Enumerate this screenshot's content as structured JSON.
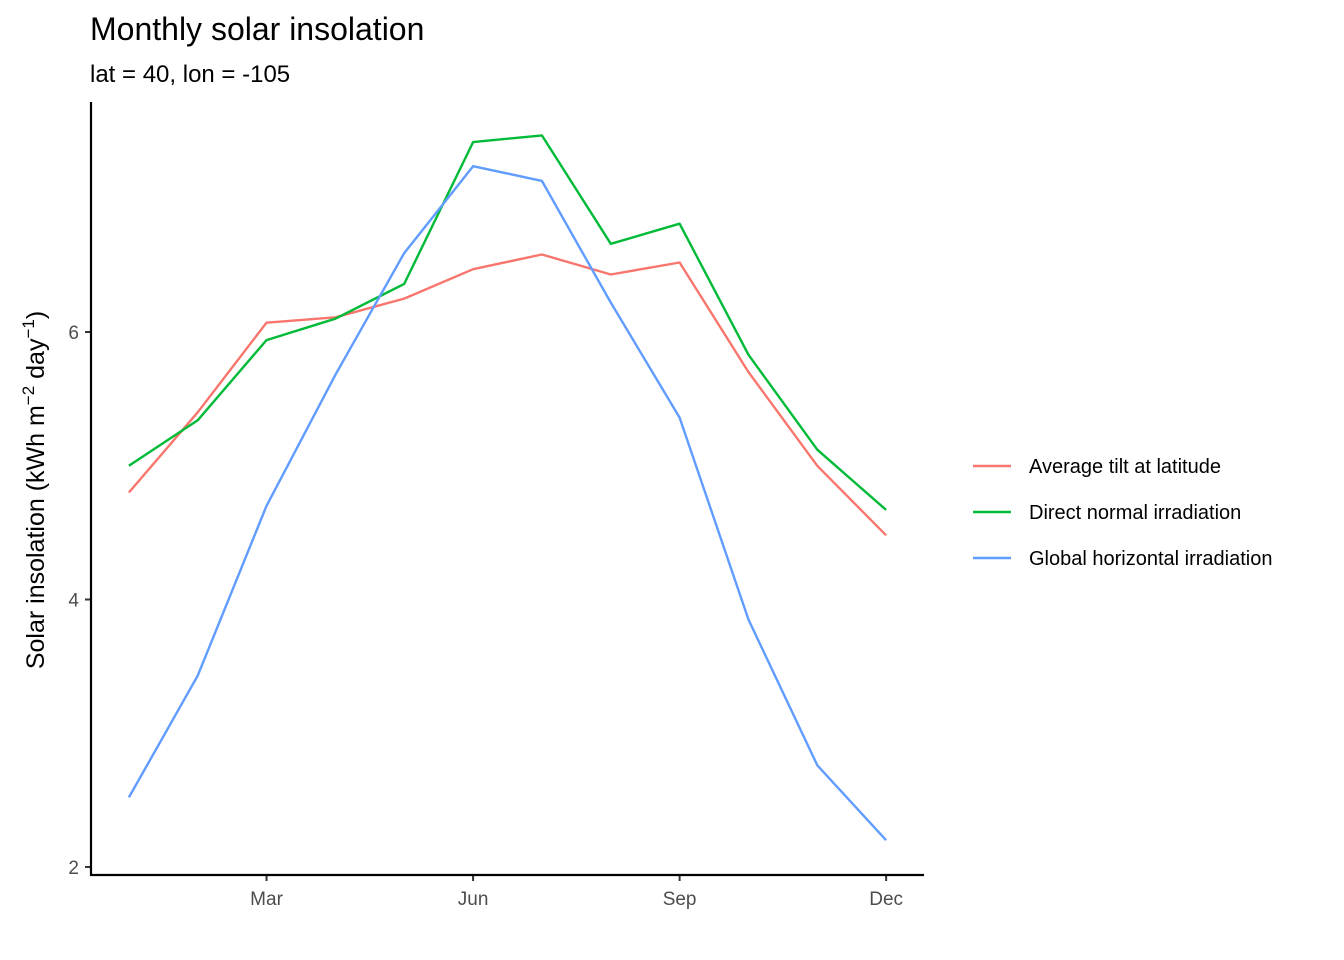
{
  "chart_data": {
    "type": "line",
    "title": "Monthly solar insolation",
    "subtitle": "lat = 40, lon = -105",
    "ylabel": "Solar insolation (kWh m",
    "ylabel_sup1": "−2",
    "ylabel_mid": " day",
    "ylabel_sup2": "−1",
    "ylabel_end": ")",
    "x": [
      1,
      2,
      3,
      4,
      5,
      6,
      7,
      8,
      9,
      10,
      11,
      12
    ],
    "x_ticks": [
      3,
      6,
      9,
      12
    ],
    "x_tick_labels": [
      "Mar",
      "Jun",
      "Sep",
      "Dec"
    ],
    "xlim": [
      0.45,
      12.55
    ],
    "y_ticks": [
      2,
      4,
      6
    ],
    "y_tick_labels": [
      "2",
      "4",
      "6"
    ],
    "ylim": [
      1.94,
      7.72
    ],
    "grid": false,
    "legend_position": "right",
    "series": [
      {
        "name": "Average tilt at latitude",
        "color": "#F8766D",
        "values": [
          4.8,
          5.4,
          6.07,
          6.11,
          6.25,
          6.47,
          6.58,
          6.43,
          6.52,
          5.7,
          5.0,
          4.48
        ]
      },
      {
        "name": "Direct normal irradiation",
        "color": "#00BA38",
        "values": [
          5.0,
          5.34,
          5.94,
          6.1,
          6.36,
          7.42,
          7.47,
          6.66,
          6.81,
          5.83,
          5.12,
          4.67
        ]
      },
      {
        "name": "Global horizontal irradiation",
        "color": "#619CFF",
        "values": [
          2.52,
          3.43,
          4.7,
          5.68,
          6.59,
          7.24,
          7.13,
          6.22,
          5.36,
          3.85,
          2.76,
          2.2
        ]
      }
    ]
  }
}
